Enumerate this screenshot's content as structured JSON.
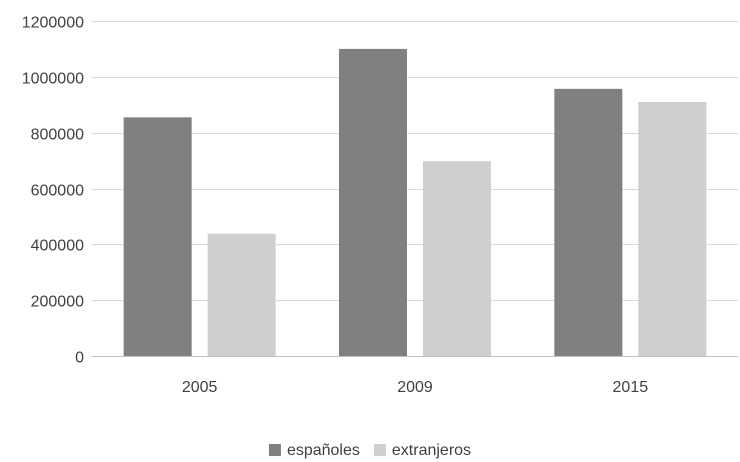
{
  "chart_data": {
    "type": "bar",
    "categories": [
      "2005",
      "2009",
      "2015"
    ],
    "series": [
      {
        "name": "españoles",
        "color": "#808080",
        "values": [
          855000,
          1100000,
          957000
        ]
      },
      {
        "name": "extranjeros",
        "color": "#d0cfd0",
        "values": [
          438000,
          698000,
          910000
        ]
      }
    ],
    "ylim": [
      0,
      1200000
    ],
    "yticks": [
      0,
      200000,
      400000,
      600000,
      800000,
      1000000,
      1200000
    ],
    "title": "",
    "xlabel": "",
    "ylabel": "",
    "grid": true,
    "legend_position": "bottom"
  }
}
